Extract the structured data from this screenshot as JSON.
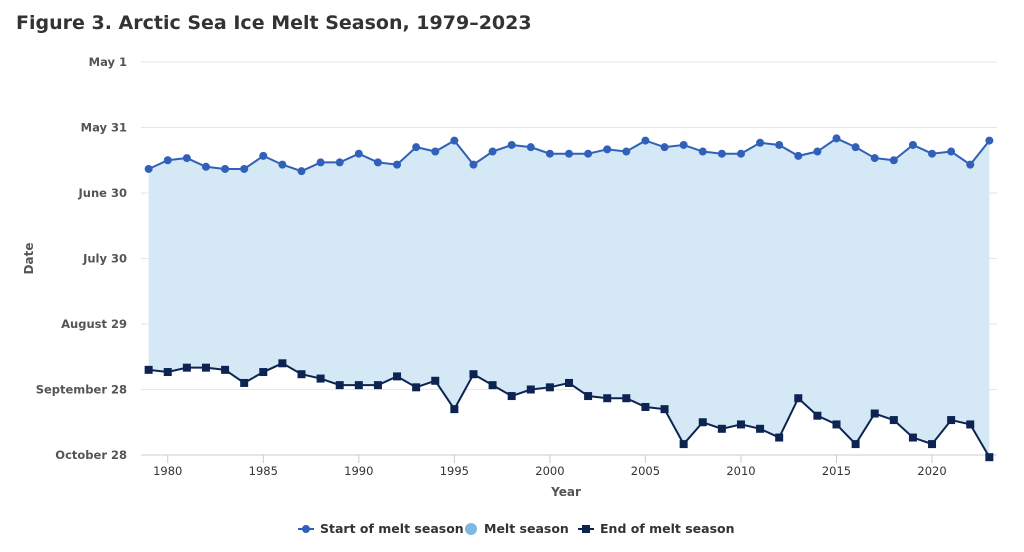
{
  "chart_data": {
    "type": "line",
    "title": "Figure 3. Arctic Sea Ice Melt Season, 1979–2023",
    "xlabel": "Year",
    "ylabel": "Date",
    "x_ticks": [
      "1980",
      "1985",
      "1990",
      "1995",
      "2000",
      "2005",
      "2010",
      "2015",
      "2020"
    ],
    "y_ticks": [
      "May 1",
      "May 31",
      "June 30",
      "July 30",
      "August 29",
      "September 28",
      "October 28"
    ],
    "ylim_day_of_year": [
      121,
      301
    ],
    "xlim": [
      1978.6,
      2023.4
    ],
    "x": [
      1979,
      1980,
      1981,
      1982,
      1983,
      1984,
      1985,
      1986,
      1987,
      1988,
      1989,
      1990,
      1991,
      1992,
      1993,
      1994,
      1995,
      1996,
      1997,
      1998,
      1999,
      2000,
      2001,
      2002,
      2003,
      2004,
      2005,
      2006,
      2007,
      2008,
      2009,
      2010,
      2011,
      2012,
      2013,
      2014,
      2015,
      2016,
      2017,
      2018,
      2019,
      2020,
      2021,
      2022,
      2023
    ],
    "series": [
      {
        "name": "Start of melt season",
        "marker": "circle",
        "color": "#3060b8",
        "values_day_of_year": [
          170,
          166,
          165,
          169,
          170,
          170,
          164,
          168,
          171,
          167,
          167,
          163,
          167,
          168,
          160,
          162,
          157,
          168,
          162,
          159,
          160,
          163,
          163,
          163,
          161,
          162,
          157,
          160,
          159,
          162,
          163,
          163,
          158,
          159,
          164,
          162,
          156,
          160,
          165,
          166,
          159,
          163,
          162,
          168,
          157
        ]
      },
      {
        "name": "End of melt season",
        "marker": "square",
        "color": "#0d2452",
        "values_day_of_year": [
          262,
          263,
          261,
          261,
          262,
          268,
          263,
          259,
          264,
          266,
          269,
          269,
          269,
          265,
          270,
          267,
          280,
          264,
          269,
          274,
          271,
          270,
          268,
          274,
          275,
          275,
          279,
          280,
          296,
          286,
          289,
          287,
          289,
          293,
          275,
          283,
          287,
          296,
          282,
          285,
          293,
          296,
          285,
          287,
          302
        ]
      }
    ],
    "area": {
      "name": "Melt season",
      "color": "#d4e8f5",
      "legend_color": "#7fb9e2"
    },
    "grid": true,
    "legend": "bottom-center"
  }
}
